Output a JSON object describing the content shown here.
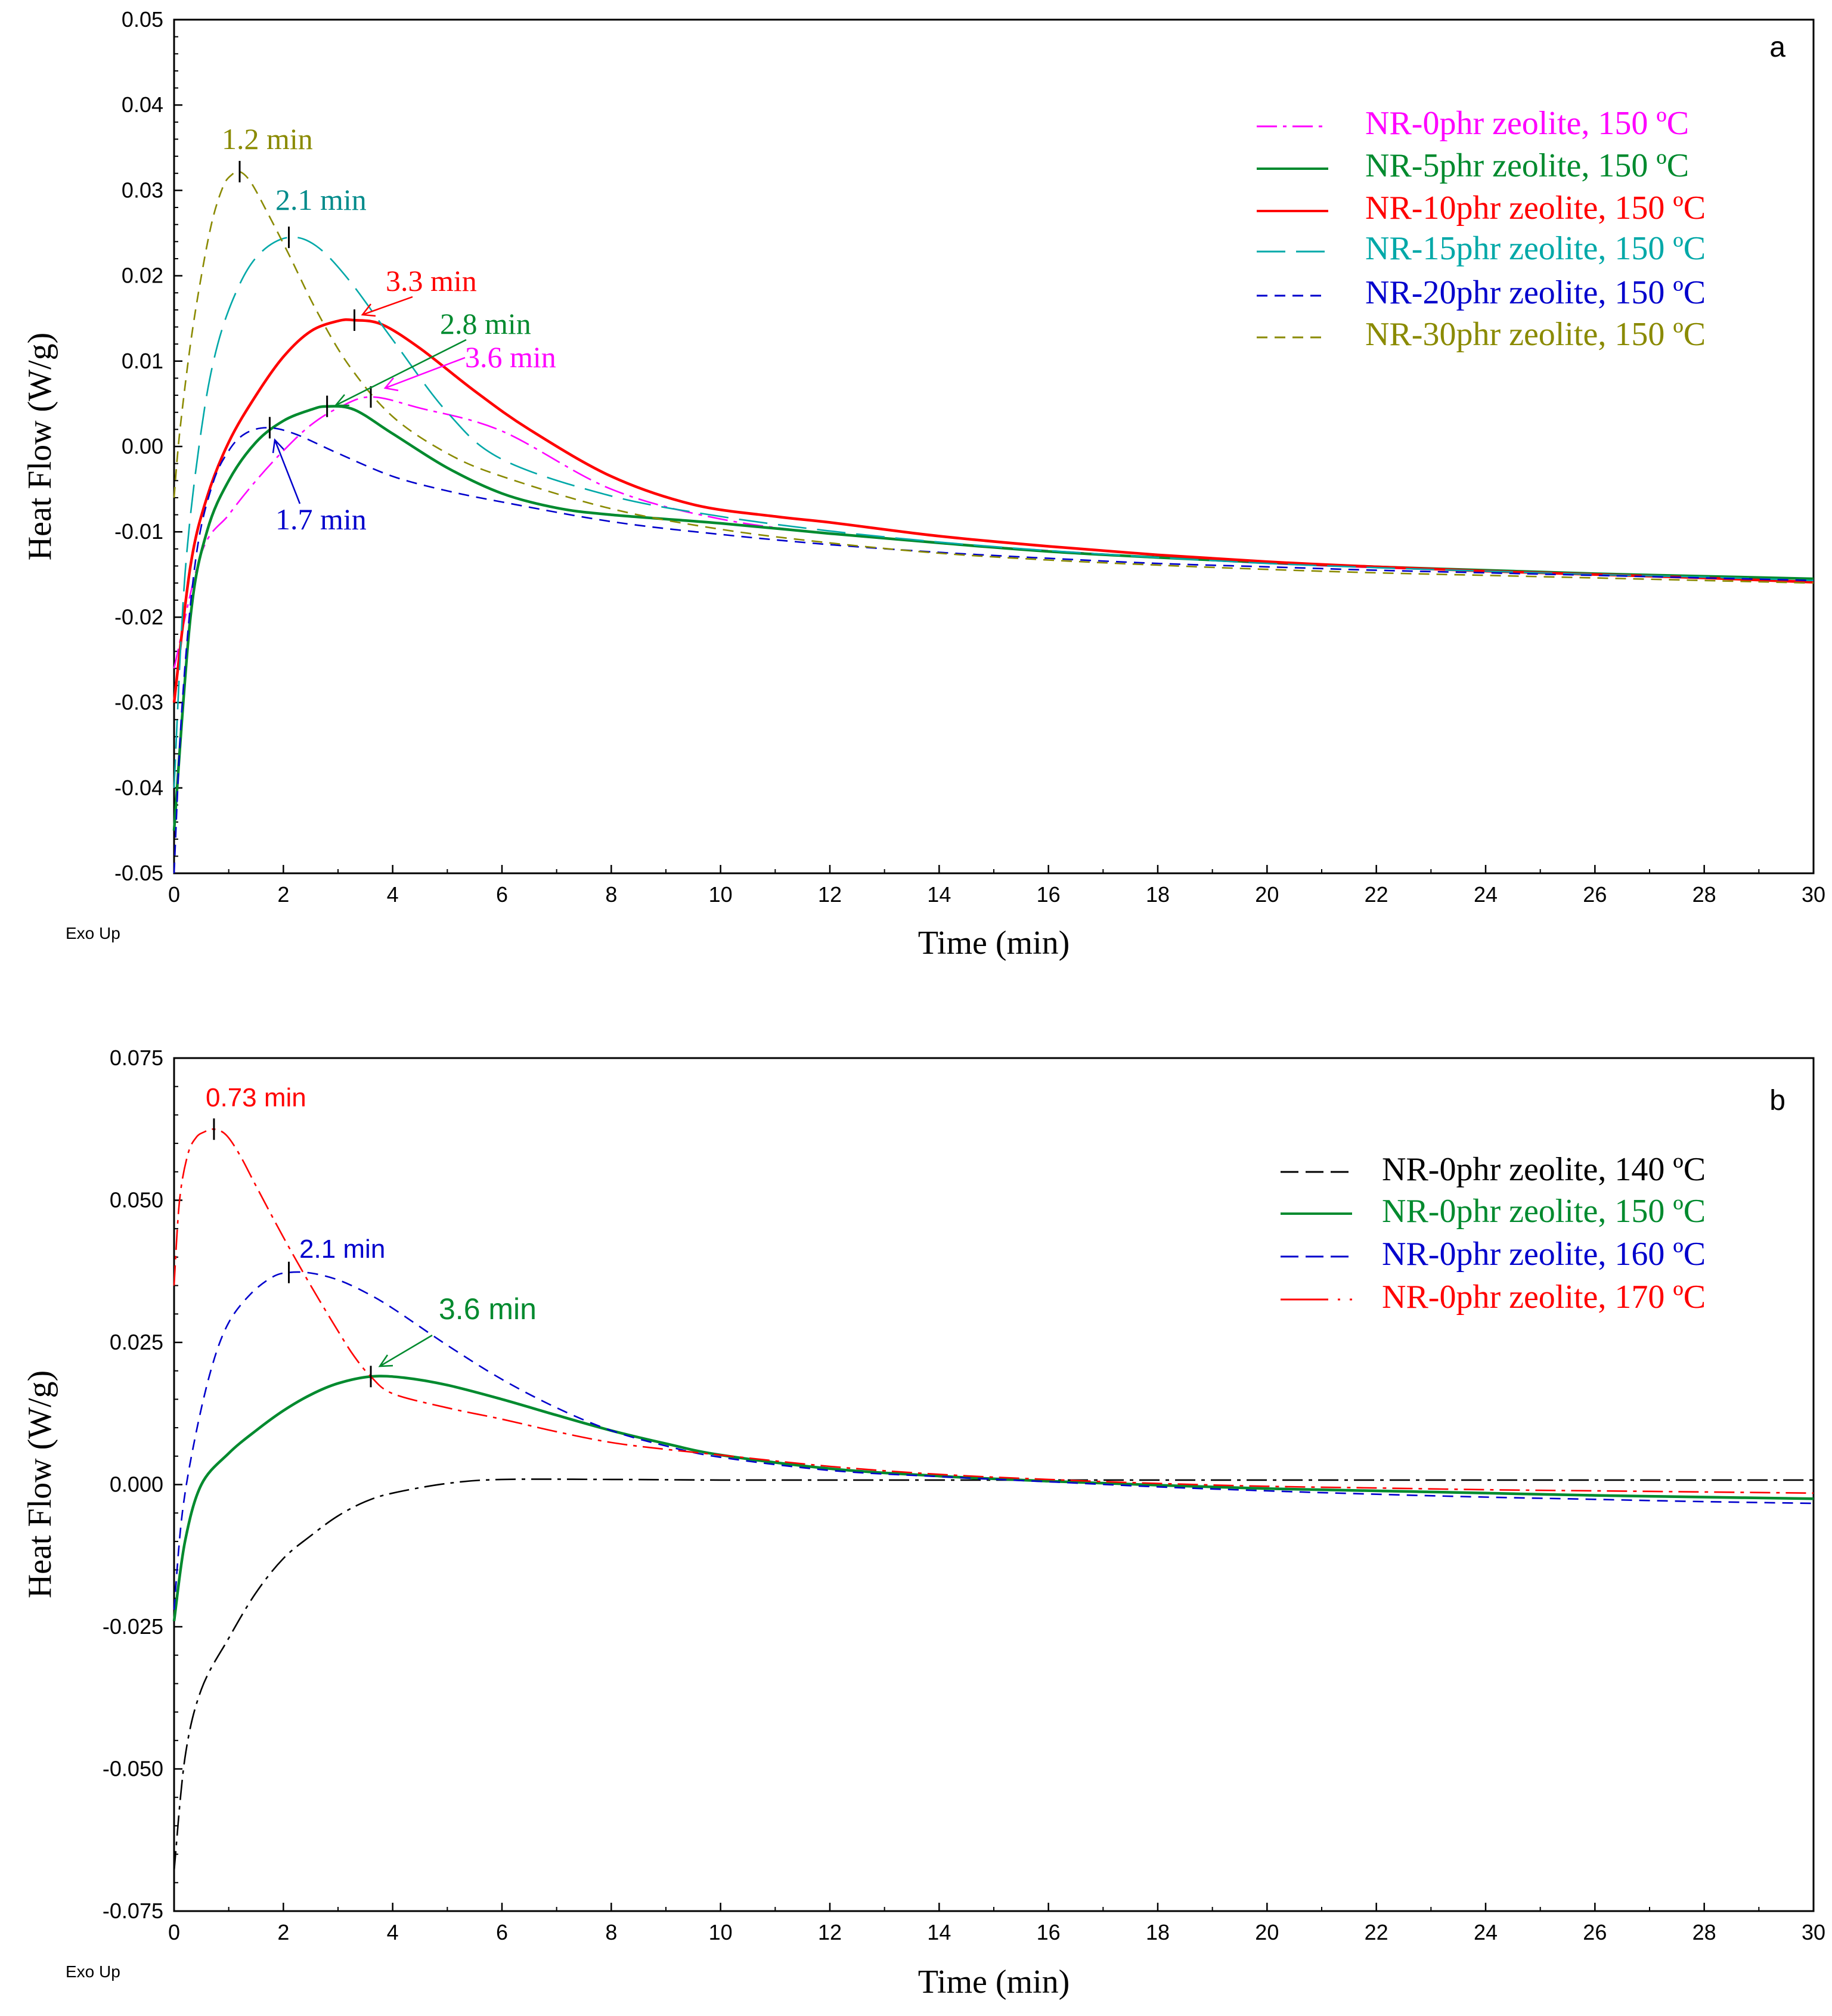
{
  "chart_data": [
    {
      "type": "line",
      "panel_label": "a",
      "xlabel": "Time (min)",
      "ylabel": "Heat Flow (W/g)",
      "footnote": "Exo Up",
      "xlim": [
        0,
        30
      ],
      "ylim": [
        -0.05,
        0.05
      ],
      "x_ticks": [
        "0",
        "2",
        "4",
        "6",
        "8",
        "10",
        "12",
        "14",
        "16",
        "18",
        "20",
        "22",
        "24",
        "26",
        "28",
        "30"
      ],
      "y_ticks": [
        "-0.05",
        "-0.04",
        "-0.03",
        "-0.02",
        "-0.01",
        "0.00",
        "0.01",
        "0.02",
        "0.03",
        "0.04",
        "0.05"
      ],
      "legend_position": "top-right",
      "series": [
        {
          "name": "NR-0phr zeolite, 150 ºC",
          "color": "#ff00ff",
          "style": "dashdot",
          "x": [
            0,
            0.5,
            1,
            1.5,
            2,
            2.5,
            3,
            3.6,
            4.5,
            6,
            8,
            10,
            12,
            14,
            16,
            18,
            20,
            22,
            24,
            26,
            28,
            30
          ],
          "y": [
            -0.026,
            -0.0125,
            -0.008,
            -0.004,
            -0.0005,
            0.0025,
            0.0045,
            0.0058,
            0.0045,
            0.0018,
            -0.005,
            -0.0085,
            -0.0102,
            -0.0113,
            -0.0122,
            -0.013,
            -0.0137,
            -0.0142,
            -0.0146,
            -0.015,
            -0.0154,
            -0.0158
          ]
        },
        {
          "name": "NR-5phr zeolite, 150 ºC",
          "color": "#008a2e",
          "style": "solid",
          "x": [
            0,
            0.3,
            0.6,
            1,
            1.5,
            2,
            2.5,
            2.8,
            3.3,
            4,
            5,
            6,
            7,
            8,
            10,
            12,
            14,
            16,
            18,
            20,
            22,
            24,
            26,
            28,
            30
          ],
          "y": [
            -0.045,
            -0.02,
            -0.01,
            -0.004,
            0.0005,
            0.003,
            0.0043,
            0.0047,
            0.0043,
            0.0015,
            -0.0025,
            -0.0055,
            -0.0072,
            -0.008,
            -0.009,
            -0.0102,
            -0.0113,
            -0.0123,
            -0.013,
            -0.0136,
            -0.0141,
            -0.0145,
            -0.0149,
            -0.0152,
            -0.0155
          ]
        },
        {
          "name": "NR-10phr zeolite, 150 ºC",
          "color": "#ff0000",
          "style": "solid",
          "x": [
            0,
            0.3,
            0.6,
            1,
            1.5,
            2,
            2.5,
            3,
            3.3,
            3.8,
            4.5,
            5.5,
            6.5,
            8,
            9.5,
            11,
            12,
            14,
            16,
            18,
            20,
            22,
            24,
            26,
            28,
            30
          ],
          "y": [
            -0.03,
            -0.014,
            -0.006,
            0.0005,
            0.006,
            0.0105,
            0.0135,
            0.0147,
            0.0148,
            0.0143,
            0.0115,
            0.0065,
            0.002,
            -0.0035,
            -0.0068,
            -0.0082,
            -0.0089,
            -0.0105,
            -0.0117,
            -0.0127,
            -0.0135,
            -0.0141,
            -0.0146,
            -0.015,
            -0.0154,
            -0.0159
          ]
        },
        {
          "name": "NR-15phr zeolite, 150 ºC",
          "color": "#00a8a8",
          "style": "longdash",
          "x": [
            0,
            0.2,
            0.5,
            0.8,
            1.2,
            1.6,
            2.1,
            2.6,
            3.2,
            4,
            5,
            6,
            8,
            10,
            12,
            14,
            16,
            18,
            20,
            22,
            24,
            26,
            28,
            30
          ],
          "y": [
            -0.04,
            -0.015,
            0.002,
            0.012,
            0.019,
            0.0228,
            0.0245,
            0.0235,
            0.0195,
            0.0125,
            0.004,
            -0.0015,
            -0.0058,
            -0.0082,
            -0.0099,
            -0.0112,
            -0.0122,
            -0.013,
            -0.0137,
            -0.0142,
            -0.0146,
            -0.015,
            -0.0153,
            -0.0157
          ]
        },
        {
          "name": "NR-20phr zeolite, 150 ºC",
          "color": "#0000cc",
          "style": "dash",
          "x": [
            0,
            0.15,
            0.4,
            0.7,
            1,
            1.3,
            1.7,
            2.2,
            3,
            4,
            5,
            6,
            8,
            10,
            12,
            14,
            16,
            18,
            20,
            22,
            24,
            26,
            28,
            30
          ],
          "y": [
            -0.05,
            -0.03,
            -0.013,
            -0.0045,
            -0.0005,
            0.0015,
            0.0022,
            0.0015,
            -0.0008,
            -0.0035,
            -0.0052,
            -0.0065,
            -0.0088,
            -0.0103,
            -0.0115,
            -0.0124,
            -0.0131,
            -0.0137,
            -0.0141,
            -0.0145,
            -0.0148,
            -0.0151,
            -0.0154,
            -0.0157
          ]
        },
        {
          "name": "NR-30phr zeolite, 150 ºC",
          "color": "#8a8a00",
          "style": "dash",
          "x": [
            0,
            0.1,
            0.3,
            0.5,
            0.7,
            0.9,
            1.05,
            1.2,
            1.4,
            1.7,
            2.1,
            2.6,
            3.2,
            4,
            5,
            6,
            8,
            10,
            12,
            14,
            16,
            18,
            20,
            22,
            24,
            26,
            28,
            30
          ],
          "y": [
            -0.006,
            0.0015,
            0.012,
            0.02,
            0.0265,
            0.0305,
            0.0318,
            0.0322,
            0.031,
            0.0275,
            0.0225,
            0.016,
            0.0095,
            0.0035,
            -0.0008,
            -0.0035,
            -0.0073,
            -0.0097,
            -0.0113,
            -0.0125,
            -0.0133,
            -0.0139,
            -0.0144,
            -0.0148,
            -0.0151,
            -0.0154,
            -0.0157,
            -0.016
          ]
        }
      ],
      "annotations": [
        {
          "text": "1.2  min",
          "x": 1.2,
          "y": 0.0322,
          "color": "#8a8a00"
        },
        {
          "text": "2.1  min",
          "x": 2.1,
          "y": 0.0245,
          "color": "#008b8b"
        },
        {
          "text": "3.3  min",
          "x": 3.3,
          "y": 0.0148,
          "color": "#ff0000"
        },
        {
          "text": "2.8  min",
          "x": 2.8,
          "y": 0.0047,
          "color": "#008a2e"
        },
        {
          "text": "3.6  min",
          "x": 3.6,
          "y": 0.0058,
          "color": "#ff00ff"
        },
        {
          "text": "1.7  min",
          "x": 1.75,
          "y": 0.0022,
          "color": "#0000cc"
        }
      ]
    },
    {
      "type": "line",
      "panel_label": "b",
      "xlabel": "Time (min)",
      "ylabel": "Heat Flow (W/g)",
      "footnote": "Exo Up",
      "xlim": [
        0,
        30
      ],
      "ylim": [
        -0.075,
        0.075
      ],
      "x_ticks": [
        "0",
        "2",
        "4",
        "6",
        "8",
        "10",
        "12",
        "14",
        "16",
        "18",
        "20",
        "22",
        "24",
        "26",
        "28",
        "30"
      ],
      "y_ticks": [
        "-0.075",
        "-0.050",
        "-0.025",
        "0.000",
        "0.025",
        "0.050",
        "0.075"
      ],
      "legend_position": "top-right",
      "series": [
        {
          "name": "NR-0phr zeolite, 140 ºC",
          "color": "#000000",
          "style": "dashdot",
          "x": [
            0,
            0.2,
            0.5,
            1,
            1.5,
            2,
            2.5,
            3,
            3.5,
            4,
            5,
            6,
            8,
            10,
            12,
            14,
            16,
            18,
            20,
            22,
            24,
            26,
            28,
            30
          ],
          "y": [
            -0.068,
            -0.048,
            -0.036,
            -0.027,
            -0.019,
            -0.013,
            -0.009,
            -0.0055,
            -0.003,
            -0.0015,
            0.0002,
            0.0009,
            0.0009,
            0.0008,
            0.0008,
            0.0008,
            0.0008,
            0.0008,
            0.0008,
            0.0008,
            0.0008,
            0.0008,
            0.0008,
            0.0008
          ]
        },
        {
          "name": "NR-0phr zeolite, 150 ºC",
          "color": "#008a2e",
          "style": "solid",
          "x": [
            0,
            0.2,
            0.5,
            1,
            1.5,
            2,
            2.5,
            3,
            3.6,
            4.2,
            5,
            6,
            7,
            8,
            9,
            10,
            12,
            14,
            16,
            18,
            20,
            22,
            24,
            26,
            28,
            30
          ],
          "y": [
            -0.024,
            -0.01,
            0.0,
            0.0055,
            0.0095,
            0.013,
            0.0158,
            0.0178,
            0.019,
            0.0188,
            0.0175,
            0.015,
            0.0122,
            0.0095,
            0.0072,
            0.0052,
            0.0028,
            0.0015,
            0.0006,
            -0.0001,
            -0.0007,
            -0.0011,
            -0.0015,
            -0.0019,
            -0.0022,
            -0.0025
          ]
        },
        {
          "name": "NR-0phr zeolite, 160 ºC",
          "color": "#0000cc",
          "style": "dash",
          "x": [
            0,
            0.15,
            0.4,
            0.7,
            1,
            1.4,
            1.8,
            2.1,
            2.5,
            3,
            3.5,
            4,
            5,
            6,
            7,
            8,
            9,
            10,
            12,
            14,
            16,
            18,
            20,
            22,
            24,
            26,
            28,
            30
          ],
          "y": [
            -0.022,
            -0.005,
            0.009,
            0.021,
            0.0285,
            0.0335,
            0.0365,
            0.0373,
            0.0372,
            0.036,
            0.0338,
            0.031,
            0.0245,
            0.0185,
            0.0135,
            0.0095,
            0.0068,
            0.0048,
            0.0025,
            0.0014,
            0.0005,
            -0.0004,
            -0.0011,
            -0.0017,
            -0.0022,
            -0.0026,
            -0.003,
            -0.0033
          ]
        },
        {
          "name": "NR-0phr zeolite, 170 ºC",
          "color": "#ff0000",
          "style": "dashdot",
          "x": [
            0,
            0.1,
            0.25,
            0.4,
            0.55,
            0.73,
            0.95,
            1.2,
            1.5,
            2,
            2.5,
            3,
            3.3,
            3.6,
            4,
            5,
            6,
            7,
            8,
            9,
            10,
            12,
            14,
            16,
            18,
            20,
            22,
            24,
            26,
            28,
            30
          ],
          "y": [
            0.035,
            0.05,
            0.058,
            0.061,
            0.062,
            0.0625,
            0.0615,
            0.058,
            0.0525,
            0.0435,
            0.035,
            0.027,
            0.0225,
            0.019,
            0.016,
            0.0135,
            0.0115,
            0.0093,
            0.0074,
            0.0062,
            0.0052,
            0.0032,
            0.0018,
            0.0009,
            0.0002,
            -0.0003,
            -0.0006,
            -0.0009,
            -0.0011,
            -0.0013,
            -0.0015
          ]
        }
      ],
      "annotations": [
        {
          "text": "0.73 min",
          "x": 0.73,
          "y": 0.0625,
          "color": "#ff0000"
        },
        {
          "text": "2.1 min",
          "x": 2.1,
          "y": 0.0373,
          "color": "#0000cc"
        },
        {
          "text": "3.6 min",
          "x": 3.6,
          "y": 0.019,
          "color": "#008a2e"
        }
      ]
    }
  ]
}
